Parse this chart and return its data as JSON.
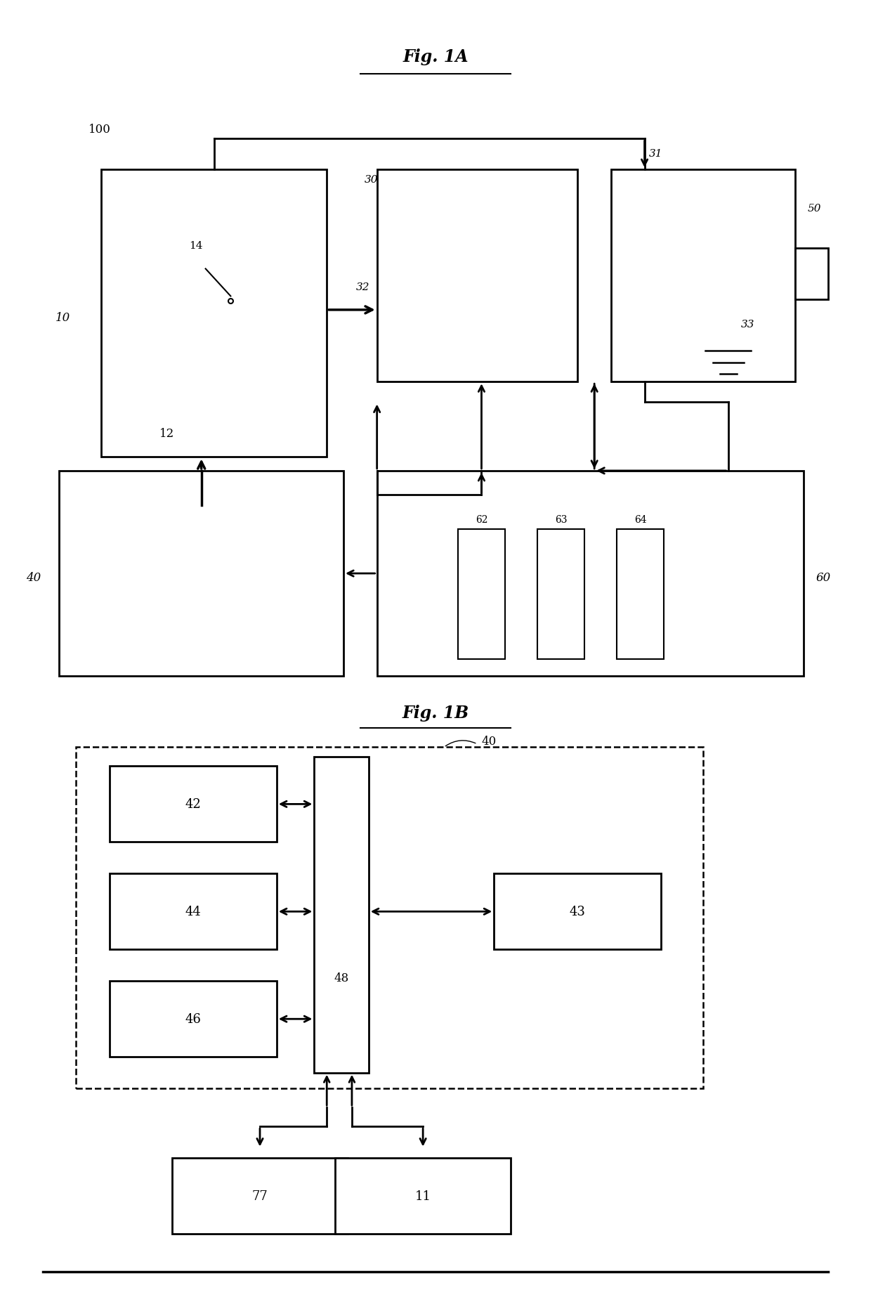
{
  "fig1a_title": "Fig. 1A",
  "fig1b_title": "Fig. 1B",
  "bg_color": "#ffffff",
  "line_color": "#000000",
  "label_100": "100",
  "label_10": "10",
  "label_12": "12",
  "label_14": "14",
  "label_30": "30",
  "label_31": "31",
  "label_32": "32",
  "label_33": "33",
  "label_50": "50",
  "label_40": "40",
  "label_60": "60",
  "label_62": "62",
  "label_63": "63",
  "label_64": "64",
  "label_42": "42",
  "label_43": "43",
  "label_44": "44",
  "label_46": "46",
  "label_48": "48",
  "label_77": "77",
  "label_11": "11"
}
